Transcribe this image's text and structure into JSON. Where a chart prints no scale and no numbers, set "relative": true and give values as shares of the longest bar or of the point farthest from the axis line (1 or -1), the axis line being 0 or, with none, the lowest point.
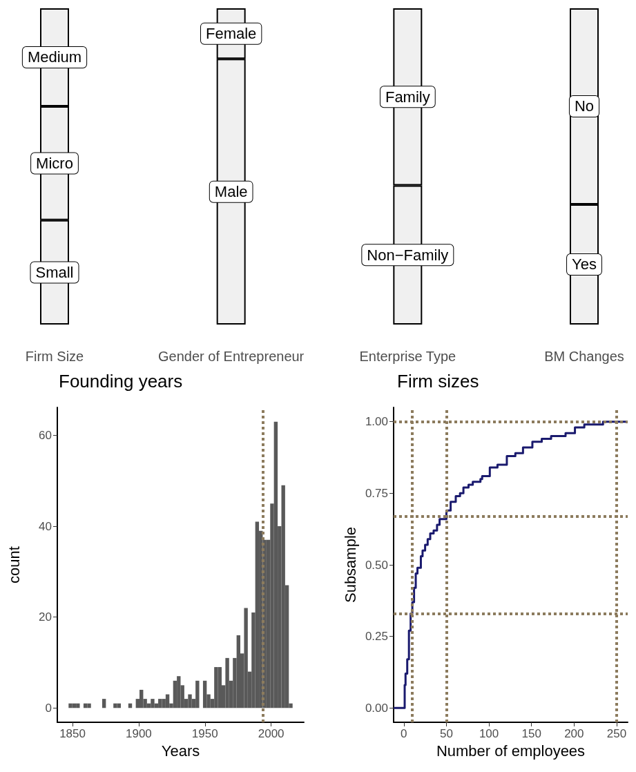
{
  "chart_data": [
    {
      "type": "bar",
      "stacked": true,
      "relative": true,
      "categories": [
        "Firm Size",
        "Gender of Entrepreneur",
        "Enterprise Type",
        "BM Changes"
      ],
      "series": [
        {
          "name": "Small",
          "color": "#f0f0f0",
          "values": [
            0.33,
            null,
            null,
            null
          ]
        },
        {
          "name": "Micro",
          "color": "#f0f0f0",
          "values": [
            0.36,
            null,
            null,
            null
          ]
        },
        {
          "name": "Medium",
          "color": "#f0f0f0",
          "values": [
            0.31,
            null,
            null,
            null
          ]
        },
        {
          "name": "Male",
          "color": "#f0f0f0",
          "values": [
            null,
            0.84,
            null,
            null
          ]
        },
        {
          "name": "Female",
          "color": "#f0f0f0",
          "values": [
            null,
            0.16,
            null,
            null
          ]
        },
        {
          "name": "Non−Family",
          "color": "#f0f0f0",
          "values": [
            null,
            null,
            0.44,
            null
          ]
        },
        {
          "name": "Family",
          "color": "#f0f0f0",
          "values": [
            null,
            null,
            0.56,
            null
          ]
        },
        {
          "name": "Yes",
          "color": "#f0f0f0",
          "values": [
            null,
            null,
            null,
            0.38
          ]
        },
        {
          "name": "No",
          "color": "#f0f0f0",
          "values": [
            null,
            null,
            null,
            0.62
          ]
        }
      ]
    },
    {
      "type": "histogram",
      "title": "Founding years",
      "xlabel": "Years",
      "ylabel": "count",
      "color": "#595959",
      "bins": [
        1847,
        1849.82,
        1852.64,
        1855.46,
        1858.28,
        1861.1,
        1863.92,
        1866.74,
        1869.56,
        1872.38,
        1875.2,
        1878.02,
        1880.84,
        1883.66,
        1886.48,
        1889.3,
        1892.12,
        1894.94,
        1897.76,
        1900.58,
        1903.4,
        1906.22,
        1909.04,
        1911.86,
        1914.68,
        1917.5,
        1920.32,
        1923.14,
        1925.96,
        1928.78,
        1931.6,
        1934.42,
        1937.24,
        1940.06,
        1942.88,
        1945.7,
        1948.52,
        1951.34,
        1954.16,
        1956.98,
        1959.8,
        1962.62,
        1965.44,
        1968.26,
        1971.08,
        1973.9,
        1976.72,
        1979.54,
        1982.36,
        1985.18,
        1988.0,
        1990.82,
        1993.64,
        1996.46,
        1999.28,
        2002.1,
        2004.92,
        2007.74,
        2010.56,
        2013.38,
        2016.2
      ],
      "values": [
        1,
        1,
        1,
        0,
        1,
        1,
        0,
        0,
        0,
        2,
        0,
        0,
        1,
        1,
        0,
        0,
        1,
        0,
        2,
        4,
        2,
        1,
        2,
        1,
        2,
        2,
        3,
        1,
        6,
        7,
        5,
        2,
        3,
        2,
        6,
        0,
        6,
        3,
        2,
        9,
        9,
        5,
        11,
        6,
        11,
        16,
        12,
        22,
        8,
        21,
        41,
        39,
        37,
        37,
        45,
        63,
        40,
        49,
        27,
        1
      ],
      "xlim": [
        1838.5,
        2024.7
      ],
      "xticks": [
        1850,
        1900,
        1950,
        2000
      ],
      "ylim": [
        -3.15,
        66.15
      ],
      "yticks": [
        0,
        20,
        40,
        60
      ],
      "grid": false,
      "ref_lines": [
        {
          "axis": "x",
          "value": 1994,
          "color": "#8c7b5d",
          "line_style": "dotted"
        }
      ]
    },
    {
      "type": "step",
      "title": "Firm sizes",
      "xlabel": "Number of employees",
      "ylabel": "Subsample",
      "marker": "none",
      "line_style": "solid",
      "grid": false,
      "series": [
        {
          "color": "#1a1a6e",
          "x": [
            -12,
            1,
            2,
            4,
            6,
            8,
            10,
            12,
            14,
            16,
            20,
            22,
            25,
            28,
            31,
            35,
            39,
            42,
            50,
            55,
            61,
            66,
            70,
            76,
            81,
            90,
            92,
            101,
            110,
            121,
            131,
            140,
            151,
            162,
            173,
            190,
            201,
            212,
            234,
            263
          ],
          "values": [
            0,
            0.08,
            0.12,
            0.17,
            0.27,
            0.33,
            0.37,
            0.42,
            0.47,
            0.49,
            0.53,
            0.55,
            0.57,
            0.59,
            0.61,
            0.62,
            0.64,
            0.66,
            0.69,
            0.72,
            0.74,
            0.75,
            0.77,
            0.78,
            0.79,
            0.8,
            0.81,
            0.84,
            0.85,
            0.88,
            0.89,
            0.91,
            0.93,
            0.94,
            0.95,
            0.96,
            0.98,
            0.99,
            1,
            1
          ]
        }
      ],
      "xlim": [
        -12,
        263
      ],
      "xticks": [
        0,
        50,
        100,
        150,
        200,
        250
      ],
      "ylim": [
        -0.05,
        1.05
      ],
      "yticks": [
        {
          "value": 0,
          "label": "0.00"
        },
        {
          "value": 0.25,
          "label": "0.25"
        },
        {
          "value": 0.5,
          "label": "0.50"
        },
        {
          "value": 0.75,
          "label": "0.75"
        },
        {
          "value": 1,
          "label": "1.00"
        }
      ],
      "ref_lines": [
        {
          "axis": "x",
          "value": 10,
          "color": "#8c7b5d",
          "line_style": "dotted"
        },
        {
          "axis": "x",
          "value": 50,
          "color": "#8c7b5d",
          "line_style": "dotted"
        },
        {
          "axis": "x",
          "value": 250,
          "color": "#8c7b5d",
          "line_style": "dotted"
        },
        {
          "axis": "y",
          "value": 0.33,
          "color": "#8c7b5d",
          "line_style": "dotted"
        },
        {
          "axis": "y",
          "value": 0.67,
          "color": "#8c7b5d",
          "line_style": "dotted"
        },
        {
          "axis": "y",
          "value": 1,
          "color": "#8c7b5d",
          "line_style": "dotted"
        }
      ]
    }
  ]
}
